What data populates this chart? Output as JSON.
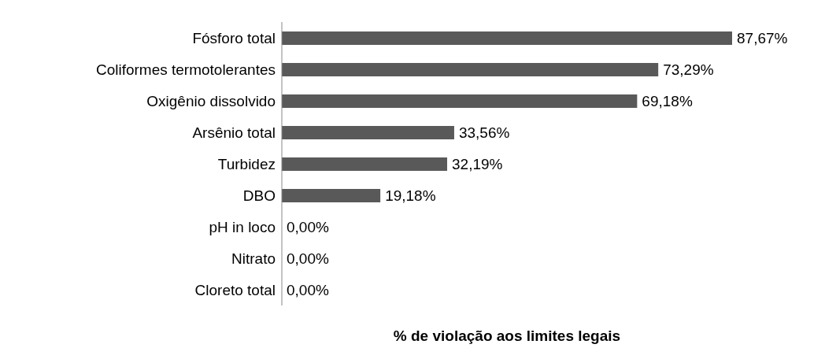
{
  "chart_data": {
    "type": "bar",
    "orientation": "horizontal",
    "xlabel": "% de violação aos limites legais",
    "categories": [
      "Fósforo total",
      "Coliformes termotolerantes",
      "Oxigênio dissolvido",
      "Arsênio total",
      "Turbidez",
      "DBO",
      "pH in loco",
      "Nitrato",
      "Cloreto total"
    ],
    "values": [
      87.67,
      73.29,
      69.18,
      33.56,
      32.19,
      19.18,
      0,
      0,
      0
    ],
    "value_labels": [
      "87,67%",
      "73,29%",
      "69,18%",
      "33,56%",
      "32,19%",
      "19,18%",
      "0,00%",
      "0,00%",
      "0,00%"
    ],
    "color": "#595959"
  }
}
